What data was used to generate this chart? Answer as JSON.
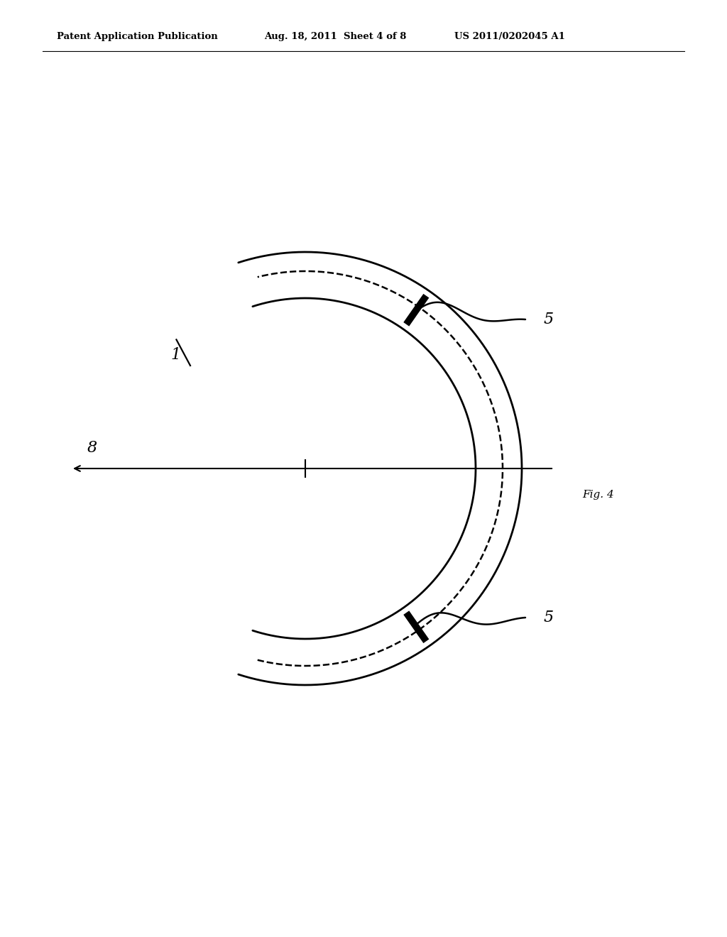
{
  "background_color": "#ffffff",
  "header_left": "Patent Application Publication",
  "header_mid": "Aug. 18, 2011  Sheet 4 of 8",
  "header_right": "US 2011/0202045 A1",
  "fig_label": "Fig. 4",
  "label_1": "1",
  "label_8": "8",
  "label_5_top": "5",
  "label_5_bot": "5",
  "arc_color": "#000000",
  "lw_outer": 2.0,
  "lw_inner": 2.0,
  "lw_dashed": 1.8,
  "lw_axis": 1.5
}
